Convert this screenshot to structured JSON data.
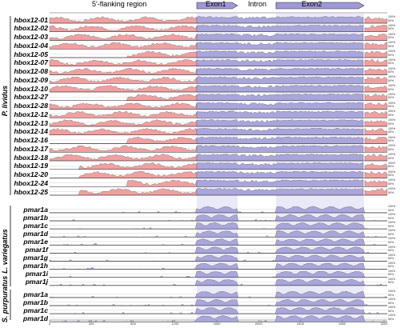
{
  "header": {
    "flanking_label": "5'-flanking region",
    "exon1_label": "Exon1",
    "intron_label": "Intron",
    "exon2_label": "Exon2"
  },
  "colors": {
    "flanking_fill": "#f0a0a0",
    "coding_fill": "#a9a6dc",
    "conserved_band": "#c3c0ea",
    "exon_arrow": "#9d98d8"
  },
  "percent_labels": [
    "100%",
    "50%"
  ],
  "groups": [
    {
      "species": "P. lividus",
      "rows": [
        "hbox12-01",
        "hbox12-02",
        "hbox12-03",
        "hbox12-04",
        "hbox12-05",
        "hbox12-07",
        "hbox12-08",
        "hbox12-09",
        "hbox12-10",
        "hbox12-27",
        "hbox12-28",
        "hbox12-12",
        "hbox12-13",
        "hbox12-14",
        "hbox12-16",
        "hbox12-17",
        "hbox12-18",
        "hbox12-19",
        "hbox12-20",
        "hbox12-24",
        "hbox12-25"
      ]
    },
    {
      "species": "L. variegatus",
      "rows": [
        "pmar1a",
        "pmar1b",
        "pmar1c",
        "pmar1d",
        "pmar1e",
        "pmar1f",
        "pmar1g",
        "pmar1h",
        "pmar1i",
        "pmar1j"
      ]
    },
    {
      "species": "S. purpuratus",
      "rows": [
        "pmar1a",
        "pmar1b",
        "pmar1c",
        "pmar1d"
      ]
    }
  ],
  "x_axis_ticks": [
    "0",
    "400",
    "800",
    "1200",
    "1600",
    "2000",
    "2400",
    "2800",
    "3200"
  ]
}
